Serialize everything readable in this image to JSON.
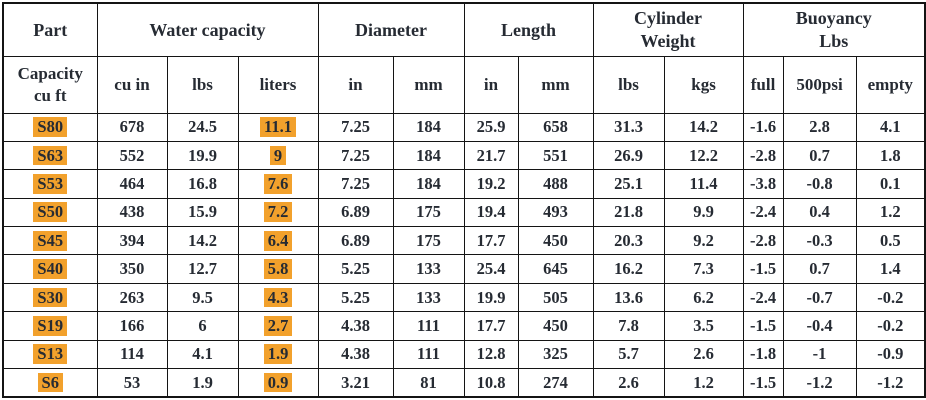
{
  "colors": {
    "highlight": "#F2A12C",
    "text": "#262b33",
    "border": "#141414"
  },
  "table": {
    "header_groups": [
      {
        "label": "Part",
        "colspan": 1
      },
      {
        "label": "Water capacity",
        "colspan": 3
      },
      {
        "label": "Diameter",
        "colspan": 2
      },
      {
        "label": "Length",
        "colspan": 2
      },
      {
        "label": "Cylinder\nWeight",
        "colspan": 2
      },
      {
        "label": "Buoyancy\nLbs",
        "colspan": 3
      }
    ],
    "sub_headers": [
      "Capacity\ncu ft",
      "cu in",
      "lbs",
      "liters",
      "in",
      "mm",
      "in",
      "mm",
      "lbs",
      "kgs",
      "full",
      "500psi",
      "empty"
    ],
    "highlighted_columns": [
      0,
      3
    ],
    "rows": [
      [
        "S80",
        "678",
        "24.5",
        "11.1",
        "7.25",
        "184",
        "25.9",
        "658",
        "31.3",
        "14.2",
        "-1.6",
        "2.8",
        "4.1"
      ],
      [
        "S63",
        "552",
        "19.9",
        "9",
        "7.25",
        "184",
        "21.7",
        "551",
        "26.9",
        "12.2",
        "-2.8",
        "0.7",
        "1.8"
      ],
      [
        "S53",
        "464",
        "16.8",
        "7.6",
        "7.25",
        "184",
        "19.2",
        "488",
        "25.1",
        "11.4",
        "-3.8",
        "-0.8",
        "0.1"
      ],
      [
        "S50",
        "438",
        "15.9",
        "7.2",
        "6.89",
        "175",
        "19.4",
        "493",
        "21.8",
        "9.9",
        "-2.4",
        "0.4",
        "1.2"
      ],
      [
        "S45",
        "394",
        "14.2",
        "6.4",
        "6.89",
        "175",
        "17.7",
        "450",
        "20.3",
        "9.2",
        "-2.8",
        "-0.3",
        "0.5"
      ],
      [
        "S40",
        "350",
        "12.7",
        "5.8",
        "5.25",
        "133",
        "25.4",
        "645",
        "16.2",
        "7.3",
        "-1.5",
        "0.7",
        "1.4"
      ],
      [
        "S30",
        "263",
        "9.5",
        "4.3",
        "5.25",
        "133",
        "19.9",
        "505",
        "13.6",
        "6.2",
        "-2.4",
        "-0.7",
        "-0.2"
      ],
      [
        "S19",
        "166",
        "6",
        "2.7",
        "4.38",
        "111",
        "17.7",
        "450",
        "7.8",
        "3.5",
        "-1.5",
        "-0.4",
        "-0.2"
      ],
      [
        "S13",
        "114",
        "4.1",
        "1.9",
        "4.38",
        "111",
        "12.8",
        "325",
        "5.7",
        "2.6",
        "-1.8",
        "-1",
        "-0.9"
      ],
      [
        "S6",
        "53",
        "1.9",
        "0.9",
        "3.21",
        "81",
        "10.8",
        "274",
        "2.6",
        "1.2",
        "-1.5",
        "-1.2",
        "-1.2"
      ]
    ]
  }
}
